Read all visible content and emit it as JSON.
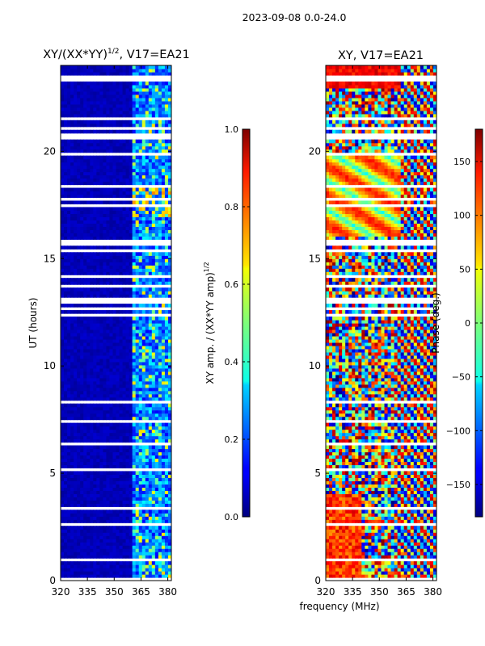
{
  "suptitle": "2023-09-08 0.0-24.0",
  "chart_data": [
    {
      "type": "heatmap",
      "title_main": "XY/(XX*YY)",
      "title_exp": "1/2",
      "title_suffix": ", V17=EA21",
      "xlabel": "",
      "ylabel": "UT (hours)",
      "xlim": [
        320,
        382
      ],
      "ylim": [
        0,
        24
      ],
      "xticks": [
        "320",
        "335",
        "350",
        "365",
        "380"
      ],
      "xtick_values": [
        320,
        335,
        350,
        365,
        380
      ],
      "yticks": [
        "0",
        "5",
        "10",
        "15",
        "20"
      ],
      "ytick_values": [
        0,
        5,
        10,
        15,
        20
      ],
      "colorbar": {
        "label_main": "XY amp. / (XX*YY amp)",
        "label_exp": "1/2",
        "range": [
          0.0,
          1.0
        ],
        "ticks": [
          "0.0",
          "0.2",
          "0.4",
          "0.6",
          "0.8",
          "1.0"
        ],
        "tick_values": [
          0.0,
          0.2,
          0.4,
          0.6,
          0.8,
          1.0
        ]
      }
    },
    {
      "type": "heatmap",
      "title": "XY, V17=EA21",
      "xlabel": "frequency (MHz)",
      "ylabel": "",
      "xlim": [
        320,
        382
      ],
      "ylim": [
        0,
        24
      ],
      "xticks": [
        "320",
        "335",
        "350",
        "365",
        "380"
      ],
      "xtick_values": [
        320,
        335,
        350,
        365,
        380
      ],
      "yticks": [
        "0",
        "5",
        "10",
        "15",
        "20"
      ],
      "ytick_values": [
        0,
        5,
        10,
        15,
        20
      ],
      "colorbar": {
        "label": "Phase (deg.)",
        "range": [
          -180,
          180
        ],
        "ticks": [
          "−150",
          "−100",
          "−50",
          "0",
          "50",
          "100",
          "150"
        ],
        "tick_values": [
          -150,
          -100,
          -50,
          0,
          50,
          100,
          150
        ]
      }
    }
  ]
}
